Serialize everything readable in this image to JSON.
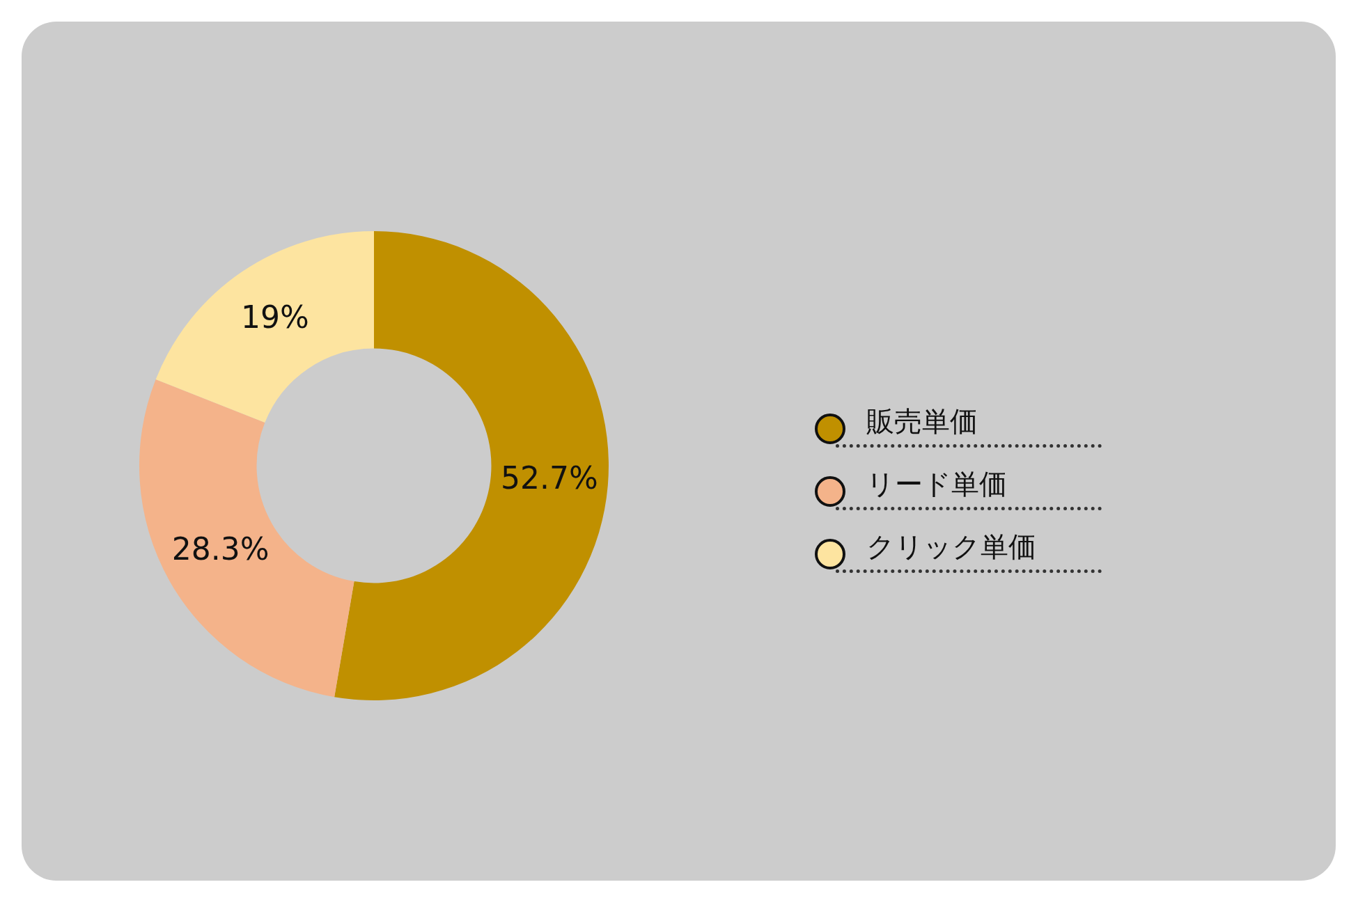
{
  "chart_data": {
    "type": "donut",
    "categories": [
      "販売単価",
      "リード単価",
      "クリック単価"
    ],
    "values": [
      52.7,
      28.3,
      19
    ],
    "colors": [
      "#c09000",
      "#f4b38a",
      "#fde4a0"
    ],
    "value_labels": [
      "52.7%",
      "28.3%",
      "19%"
    ],
    "legend": "right"
  }
}
